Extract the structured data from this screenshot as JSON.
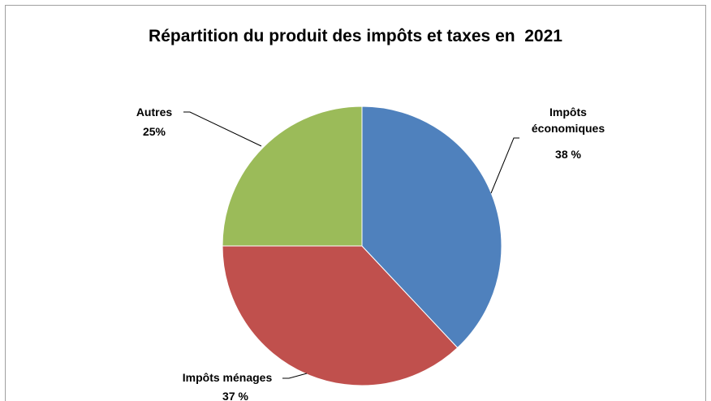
{
  "chart_data": {
    "type": "pie",
    "title": "Répartition du produit des impôts et taxes en  2021",
    "categories": [
      "Impôts économiques",
      "Impôts ménages",
      "Autres"
    ],
    "values": [
      38,
      37,
      25
    ],
    "value_labels": [
      "38 %",
      "37 %",
      "25%"
    ],
    "colors": [
      "#4f81bd",
      "#c0504d",
      "#9bbb59"
    ]
  }
}
